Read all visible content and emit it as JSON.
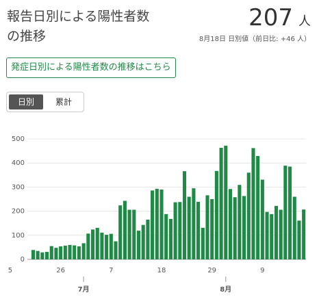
{
  "chart_data": {
    "type": "bar",
    "title": "報告日別による陽性者数の推移",
    "headline_value": 207,
    "headline_unit": "人",
    "subtitle": "8月18日 日別値（前日比: +46 人）",
    "link_button": "発症日別による陽性者数の推移はこちら",
    "toggle": [
      "日別",
      "累計"
    ],
    "color": "#1e8a45",
    "categories": [
      "5",
      null,
      null,
      null,
      null,
      null,
      null,
      null,
      null,
      null,
      null,
      "26",
      null,
      null,
      null,
      null,
      null,
      null,
      null,
      null,
      null,
      null,
      "7",
      null,
      null,
      null,
      null,
      null,
      null,
      null,
      null,
      null,
      null,
      "18",
      null,
      null,
      null,
      null,
      null,
      null,
      null,
      null,
      null,
      null,
      "29",
      null,
      null,
      null,
      null,
      null,
      null,
      null,
      null,
      null,
      null,
      "9",
      null,
      null,
      null,
      null,
      null,
      null,
      null,
      null,
      null
    ],
    "month_categories": [
      null,
      null,
      null,
      null,
      null,
      null,
      null,
      null,
      null,
      null,
      null,
      null,
      null,
      null,
      null,
      null,
      "7月",
      null,
      null,
      null,
      null,
      null,
      null,
      null,
      null,
      null,
      null,
      null,
      null,
      null,
      null,
      null,
      null,
      null,
      null,
      null,
      null,
      null,
      null,
      null,
      null,
      null,
      null,
      null,
      null,
      null,
      null,
      "8月",
      null,
      null,
      null,
      null,
      null,
      null,
      null,
      null,
      null,
      null,
      null,
      null,
      null,
      null,
      null,
      null,
      null
    ],
    "values": [
      null,
      null,
      null,
      null,
      null,
      39,
      35,
      29,
      31,
      55,
      48,
      54,
      57,
      60,
      58,
      54,
      67,
      107,
      124,
      131,
      111,
      102,
      106,
      75,
      224,
      243,
      206,
      206,
      119,
      143,
      165,
      286,
      293,
      290,
      188,
      168,
      237,
      238,
      366,
      260,
      295,
      239,
      131,
      266,
      250,
      367,
      463,
      472,
      292,
      258,
      309,
      263,
      360,
      462,
      429,
      331,
      197,
      188,
      222,
      206,
      389,
      385,
      260,
      161,
      207
    ],
    "ylim": [
      0,
      500
    ],
    "yticks": [
      0,
      100,
      200,
      300,
      400,
      500
    ],
    "grid": true
  }
}
